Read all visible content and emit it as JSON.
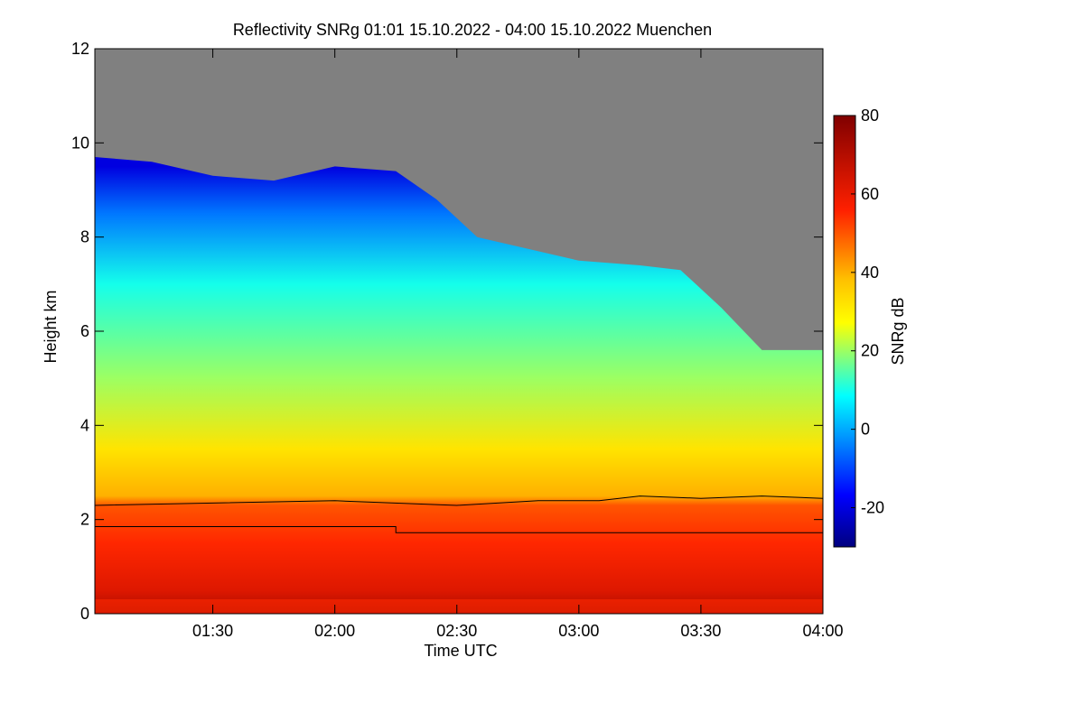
{
  "chart_data": {
    "type": "heatmap",
    "title": "Reflectivity SNRg   01:01 15.10.2022 - 04:00 15.10.2022 Muenchen",
    "xlabel": "Time UTC",
    "ylabel": "Height km",
    "colorbar_label": "SNRg dB",
    "xlim": [
      "01:01",
      "04:00"
    ],
    "ylim": [
      0,
      12
    ],
    "x_ticks": [
      "01:30",
      "02:00",
      "02:30",
      "03:00",
      "03:30",
      "04:00"
    ],
    "y_ticks": [
      "0",
      "2",
      "4",
      "6",
      "8",
      "10",
      "12"
    ],
    "colorbar_range": [
      -30,
      80
    ],
    "colorbar_ticks": [
      "-20",
      "0",
      "20",
      "40",
      "60",
      "80"
    ],
    "no_signal_color": "#808080",
    "echo_top_km": [
      {
        "time": "01:01",
        "height": 9.7
      },
      {
        "time": "01:15",
        "height": 9.6
      },
      {
        "time": "01:30",
        "height": 9.3
      },
      {
        "time": "01:45",
        "height": 9.2
      },
      {
        "time": "02:00",
        "height": 9.5
      },
      {
        "time": "02:15",
        "height": 9.4
      },
      {
        "time": "02:25",
        "height": 8.8
      },
      {
        "time": "02:35",
        "height": 8.0
      },
      {
        "time": "02:45",
        "height": 7.8
      },
      {
        "time": "03:00",
        "height": 7.5
      },
      {
        "time": "03:15",
        "height": 7.4
      },
      {
        "time": "03:25",
        "height": 7.3
      },
      {
        "time": "03:35",
        "height": 6.5
      },
      {
        "time": "03:45",
        "height": 5.6
      },
      {
        "time": "04:00",
        "height": 5.6
      }
    ],
    "melting_layer_line_km": [
      {
        "time": "01:01",
        "height": 2.3
      },
      {
        "time": "01:30",
        "height": 2.35
      },
      {
        "time": "02:00",
        "height": 2.4
      },
      {
        "time": "02:30",
        "height": 2.3
      },
      {
        "time": "02:50",
        "height": 2.4
      },
      {
        "time": "03:05",
        "height": 2.4
      },
      {
        "time": "03:15",
        "height": 2.5
      },
      {
        "time": "03:30",
        "height": 2.45
      },
      {
        "time": "03:45",
        "height": 2.5
      },
      {
        "time": "04:00",
        "height": 2.45
      }
    ],
    "lower_line_km": [
      {
        "time": "01:01",
        "height": 1.85
      },
      {
        "time": "02:15",
        "height": 1.85
      },
      {
        "time": "02:15",
        "height": 1.72
      },
      {
        "time": "04:00",
        "height": 1.72
      }
    ],
    "snr_profile_db": [
      {
        "height": 0.0,
        "snr": 72
      },
      {
        "height": 0.5,
        "snr": 62
      },
      {
        "height": 1.5,
        "snr": 55
      },
      {
        "height": 2.3,
        "snr": 50
      },
      {
        "height": 2.5,
        "snr": 40
      },
      {
        "height": 3.5,
        "snr": 32
      },
      {
        "height": 5.0,
        "snr": 20
      },
      {
        "height": 7.0,
        "snr": 10
      },
      {
        "height": 8.5,
        "snr": -5
      },
      {
        "height": 9.5,
        "snr": -20
      }
    ]
  }
}
